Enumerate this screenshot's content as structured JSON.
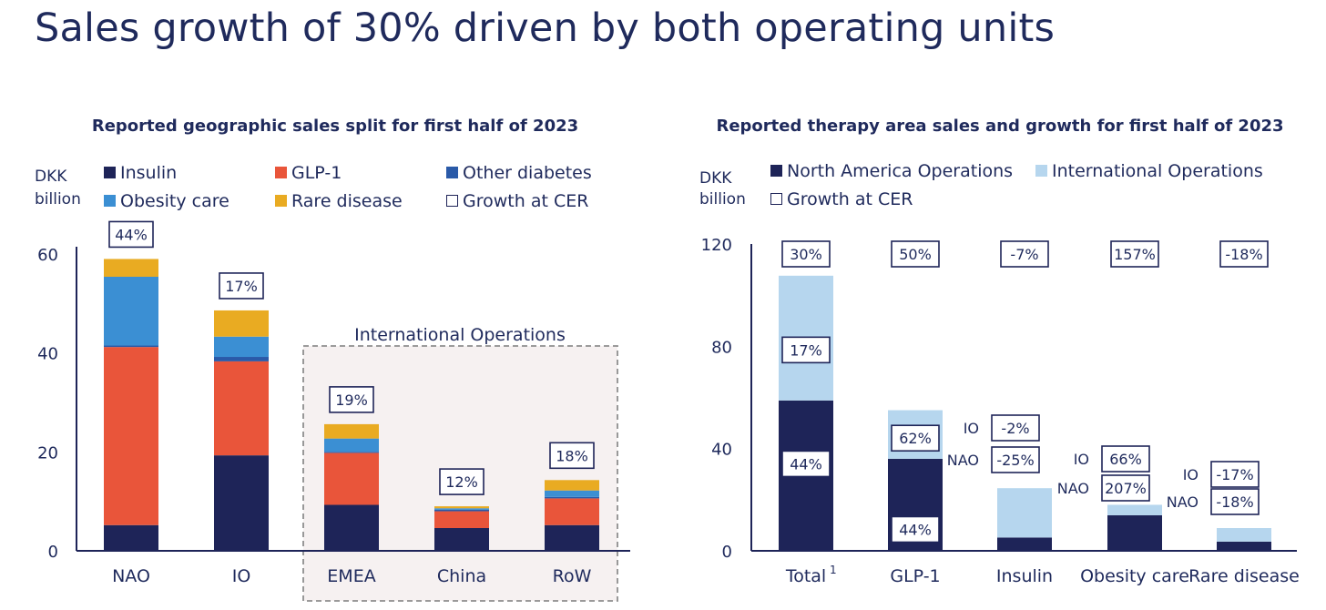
{
  "page_title": "Sales growth of 30% driven by both operating units",
  "colors": {
    "navy": "#1e2458",
    "insulin": "#1e2458",
    "glp1": "#e9553a",
    "other_diabetes": "#2a5aa8",
    "obesity_care": "#3b8fd3",
    "rare_disease": "#e9ab22",
    "international": "#b6d6ee",
    "io_box_fill": "#f6f1f1",
    "dashed": "#8e8e8e"
  },
  "chart_data": [
    {
      "type": "bar",
      "stacked": true,
      "title": "Reported geographic sales split for first half of 2023",
      "ylabel": "DKK billion",
      "ylim": [
        0,
        60
      ],
      "yticks": [
        0,
        20,
        40,
        60
      ],
      "grid": false,
      "legend_position": "top",
      "legend": [
        "Insulin",
        "GLP-1",
        "Other diabetes",
        "Obesity care",
        "Rare disease",
        "Growth at CER"
      ],
      "categories": [
        "NAO",
        "IO",
        "EMEA",
        "China",
        "RoW"
      ],
      "series": [
        {
          "name": "Insulin",
          "color": "#1e2458",
          "values": [
            5.2,
            19.3,
            9.3,
            4.6,
            5.2
          ]
        },
        {
          "name": "GLP-1",
          "color": "#e9553a",
          "values": [
            36.0,
            19.0,
            10.5,
            3.4,
            5.4
          ]
        },
        {
          "name": "Other diabetes",
          "color": "#2a5aa8",
          "values": [
            0.3,
            0.9,
            0.2,
            0.3,
            0.3
          ]
        },
        {
          "name": "Obesity care",
          "color": "#3b8fd3",
          "values": [
            13.9,
            4.1,
            2.7,
            0.3,
            1.3
          ]
        },
        {
          "name": "Rare disease",
          "color": "#e9ab22",
          "values": [
            3.6,
            5.3,
            2.9,
            0.4,
            2.1
          ]
        }
      ],
      "growth_labels": [
        "44%",
        "17%",
        "19%",
        "12%",
        "18%"
      ],
      "group_annotation": {
        "label": "International Operations",
        "categories": [
          "EMEA",
          "China",
          "RoW"
        ]
      }
    },
    {
      "type": "bar",
      "stacked": true,
      "title": "Reported therapy area sales and growth for first half of 2023",
      "ylabel": "DKK billion",
      "ylim": [
        0,
        120
      ],
      "yticks": [
        0,
        40,
        80,
        120
      ],
      "grid": false,
      "legend_position": "top",
      "legend": [
        "North America Operations",
        "International Operations",
        "Growth at CER"
      ],
      "categories": [
        "Total",
        "GLP-1",
        "Insulin",
        "Obesity care",
        "Rare disease"
      ],
      "category_superscripts": [
        "1",
        "",
        "",
        "",
        ""
      ],
      "series": [
        {
          "name": "North America Operations",
          "color": "#1e2458",
          "values": [
            58.8,
            36.0,
            5.2,
            13.9,
            3.6
          ]
        },
        {
          "name": "International Operations",
          "color": "#b6d6ee",
          "values": [
            48.8,
            19.0,
            19.3,
            4.1,
            5.3
          ]
        }
      ],
      "growth_labels": [
        "30%",
        "50%",
        "-7%",
        "157%",
        "-18%"
      ],
      "inbar_labels": [
        {
          "category": "Total",
          "nao": "44%",
          "io": "17%"
        },
        {
          "category": "GLP-1",
          "nao": "44%",
          "io": "62%"
        }
      ],
      "side_labels": [
        {
          "category": "Insulin",
          "io_label": "IO",
          "io": "-2%",
          "nao_label": "NAO",
          "nao": "-25%"
        },
        {
          "category": "Obesity care",
          "io_label": "IO",
          "io": "66%",
          "nao_label": "NAO",
          "nao": "207%"
        },
        {
          "category": "Rare disease",
          "io_label": "IO",
          "io": "-17%",
          "nao_label": "NAO",
          "nao": "-18%"
        }
      ]
    }
  ]
}
